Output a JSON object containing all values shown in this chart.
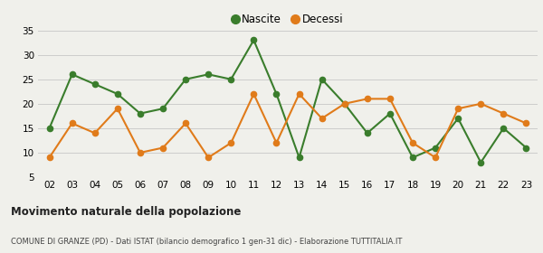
{
  "years": [
    "02",
    "03",
    "04",
    "05",
    "06",
    "07",
    "08",
    "09",
    "10",
    "11",
    "12",
    "13",
    "14",
    "15",
    "16",
    "17",
    "18",
    "19",
    "20",
    "21",
    "22",
    "23"
  ],
  "nascite": [
    15,
    26,
    24,
    22,
    18,
    19,
    25,
    26,
    25,
    33,
    22,
    9,
    25,
    20,
    14,
    18,
    9,
    11,
    17,
    8,
    15,
    11
  ],
  "decessi": [
    9,
    16,
    14,
    19,
    10,
    11,
    16,
    9,
    12,
    22,
    12,
    22,
    17,
    20,
    21,
    21,
    12,
    9,
    19,
    20,
    18,
    16
  ],
  "nascite_color": "#3a7d2c",
  "decessi_color": "#e07b1a",
  "background_color": "#f0f0eb",
  "ylim": [
    5,
    35
  ],
  "yticks": [
    5,
    10,
    15,
    20,
    25,
    30,
    35
  ],
  "title": "Movimento naturale della popolazione",
  "subtitle": "COMUNE DI GRANZE (PD) - Dati ISTAT (bilancio demografico 1 gen-31 dic) - Elaborazione TUTTITALIA.IT",
  "legend_nascite": "Nascite",
  "legend_decessi": "Decessi",
  "marker_size": 4.5,
  "line_width": 1.5
}
